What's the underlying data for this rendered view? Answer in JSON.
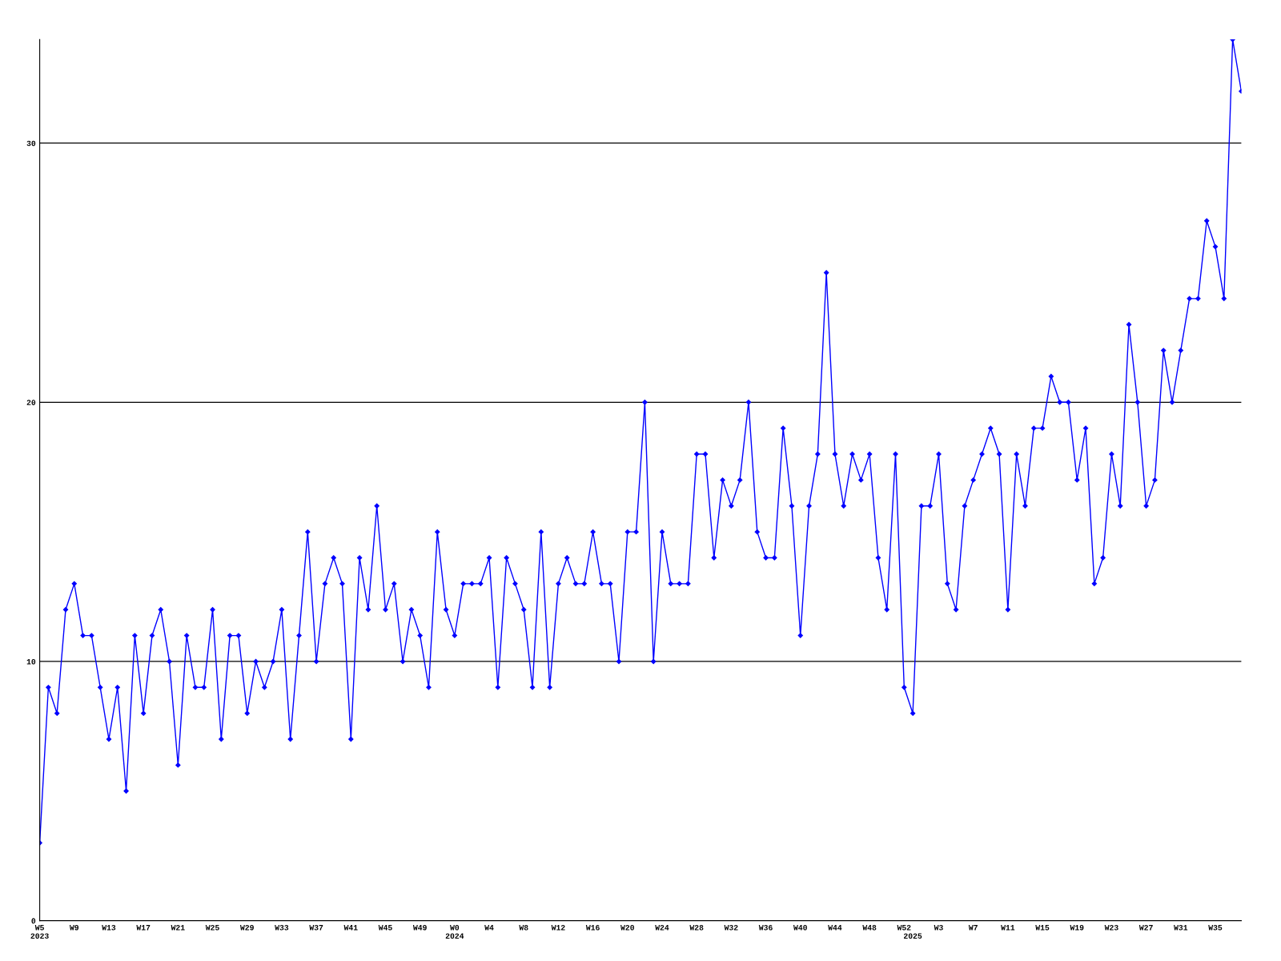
{
  "chart_data": {
    "type": "line",
    "categories": [
      "W5\n2023",
      null,
      null,
      null,
      "W9",
      null,
      null,
      null,
      "W13",
      null,
      null,
      null,
      "W17",
      null,
      null,
      null,
      "W21",
      null,
      null,
      null,
      "W25",
      null,
      null,
      null,
      "W29",
      null,
      null,
      null,
      "W33",
      null,
      null,
      null,
      "W37",
      null,
      null,
      null,
      "W41",
      null,
      null,
      null,
      "W45",
      null,
      null,
      null,
      "W49",
      null,
      null,
      null,
      "W0\n2024",
      null,
      null,
      null,
      "W4",
      null,
      null,
      null,
      "W8",
      null,
      null,
      null,
      "W12",
      null,
      null,
      null,
      "W16",
      null,
      null,
      null,
      "W20",
      null,
      null,
      null,
      "W24",
      null,
      null,
      null,
      "W28",
      null,
      null,
      null,
      "W32",
      null,
      null,
      null,
      "W36",
      null,
      null,
      null,
      "W40",
      null,
      null,
      null,
      "W44",
      null,
      null,
      null,
      "W48",
      null,
      null,
      null,
      "W52",
      "\n2025",
      null,
      null,
      "W3",
      null,
      null,
      null,
      "W7",
      null,
      null,
      null,
      "W11",
      null,
      null,
      null,
      "W15",
      null,
      null,
      null,
      "W19",
      null,
      null,
      null,
      "W23",
      null,
      null,
      null,
      "W27",
      null,
      null,
      null,
      "W31",
      null,
      null,
      null,
      "W35",
      null,
      null,
      null
    ],
    "series": [
      {
        "color": "#0000ff",
        "values": [
          3,
          9,
          8,
          12,
          13,
          11,
          11,
          9,
          7,
          9,
          5,
          11,
          8,
          11,
          12,
          10,
          6,
          11,
          9,
          9,
          12,
          7,
          11,
          11,
          8,
          10,
          9,
          10,
          12,
          7,
          11,
          15,
          10,
          13,
          14,
          13,
          7,
          14,
          12,
          16,
          12,
          13,
          10,
          12,
          11,
          9,
          15,
          12,
          11,
          13,
          13,
          13,
          14,
          9,
          14,
          13,
          12,
          9,
          15,
          9,
          13,
          14,
          13,
          13,
          15,
          13,
          13,
          10,
          15,
          15,
          20,
          10,
          15,
          13,
          13,
          13,
          18,
          18,
          14,
          17,
          16,
          17,
          20,
          15,
          14,
          14,
          19,
          16,
          11,
          16,
          18,
          25,
          18,
          16,
          18,
          17,
          18,
          14,
          12,
          18,
          9,
          8,
          16,
          16,
          18,
          13,
          12,
          16,
          17,
          18,
          19,
          18,
          12,
          18,
          16,
          19,
          19,
          21,
          20,
          20,
          17,
          19,
          13,
          14,
          18,
          16,
          23,
          20,
          16,
          17,
          22,
          20,
          22,
          24,
          24,
          27,
          26,
          24,
          34,
          32
        ]
      }
    ],
    "ylim": [
      0,
      34
    ],
    "yticks": [
      0,
      10,
      20,
      30
    ],
    "grid": "y",
    "marker": "diamond",
    "line_style": "solid"
  }
}
